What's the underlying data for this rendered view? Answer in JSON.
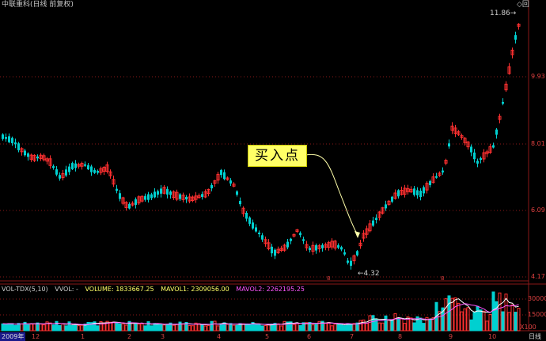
{
  "header": {
    "title": "中联重科(日线 前复权)",
    "top_right": "◇回"
  },
  "price_axis": {
    "labels": [
      "9.93",
      "8.01",
      "6.09",
      "4.17"
    ]
  },
  "price_annotations": {
    "high": "11.86",
    "low": "4.32",
    "buy_point": "买入点",
    "markers": [
      "8",
      "8"
    ]
  },
  "volume_panel": {
    "indicator": "VOL-TDX(5,10)",
    "vvol": "VVOL: -",
    "volume": "VOLUME: 1833667.25",
    "mavol1": "MAVOL1: 2309056.00",
    "mavol2": "MAVOL2: 2262195.25",
    "axis_labels": [
      "30000",
      "15000"
    ],
    "unit": "X100"
  },
  "timeline": {
    "year": "2009年",
    "months": [
      "12",
      "1",
      "2",
      "3",
      "4",
      "5",
      "6",
      "7",
      "8",
      "9",
      "10"
    ],
    "period": "日线"
  },
  "colors": {
    "up": "#ff3030",
    "down": "#00d0d0",
    "mavol1": "#ffffff",
    "mavol2": "#ff55ff",
    "grid": "#8a1818",
    "callout": "#ffff66"
  }
}
